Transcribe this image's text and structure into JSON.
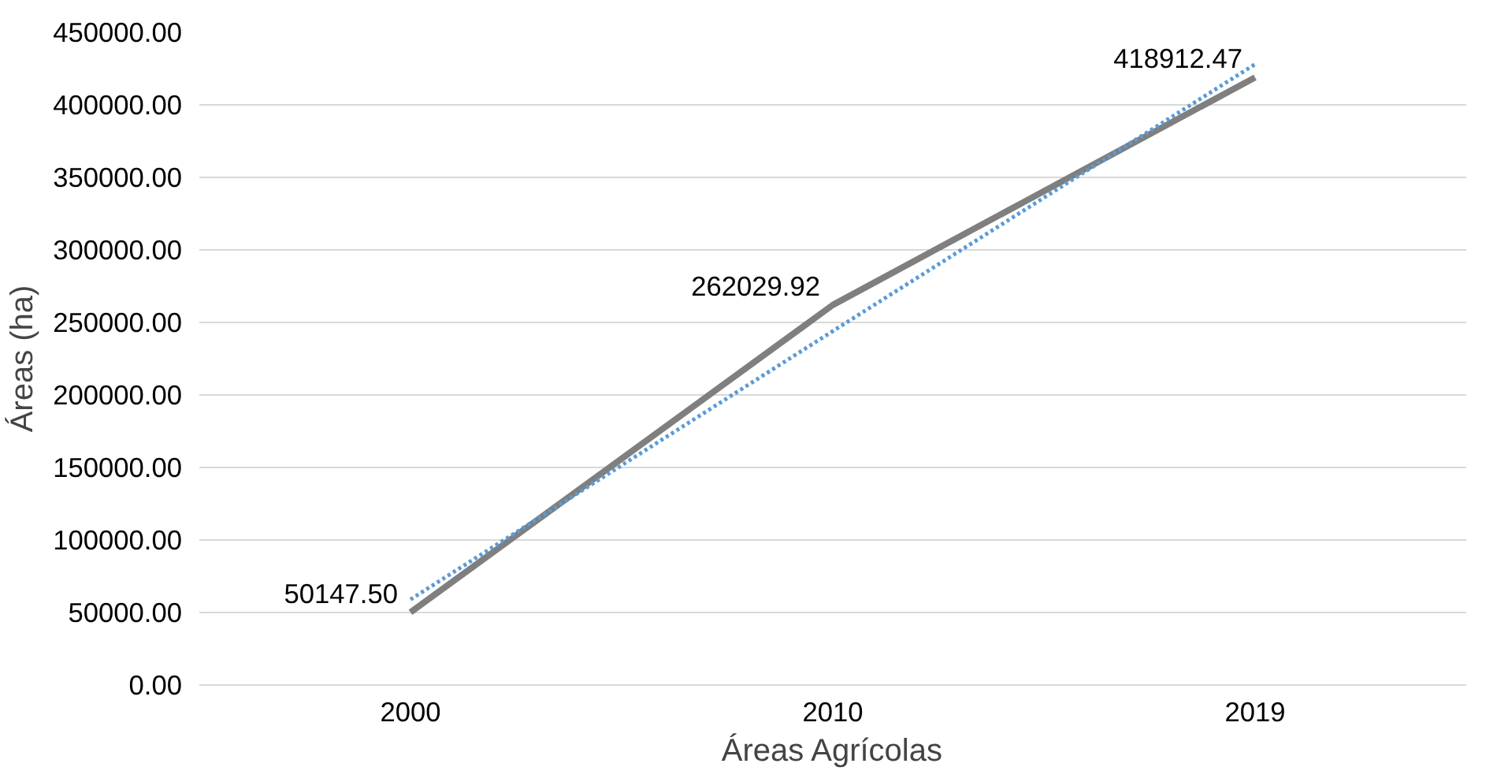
{
  "chart_data": {
    "type": "line",
    "xlabel": "Áreas Agrícolas",
    "ylabel": "Áreas (ha)",
    "categories": [
      "2000",
      "2010",
      "2019"
    ],
    "series": [
      {
        "color": "#7f7f7f",
        "values": [
          50147.5,
          262029.92,
          418912.47
        ],
        "value_labels": [
          "50147.50",
          "262029.92",
          "418912.47"
        ],
        "line_style": "solid"
      },
      {
        "color": "#5b9bd5",
        "values": [
          59000,
          244000,
          428000
        ],
        "line_style": "dotted"
      }
    ],
    "ylim": [
      0,
      450000
    ],
    "yticks": [
      {
        "value": 0,
        "label": "0.00"
      },
      {
        "value": 50000,
        "label": "50000.00"
      },
      {
        "value": 100000,
        "label": "100000.00"
      },
      {
        "value": 150000,
        "label": "150000.00"
      },
      {
        "value": 200000,
        "label": "200000.00"
      },
      {
        "value": 250000,
        "label": "250000.00"
      },
      {
        "value": 300000,
        "label": "300000.00"
      },
      {
        "value": 350000,
        "label": "350000.00"
      },
      {
        "value": 400000,
        "label": "400000.00"
      },
      {
        "value": 450000,
        "label": "450000.00"
      }
    ],
    "grid": "y"
  }
}
